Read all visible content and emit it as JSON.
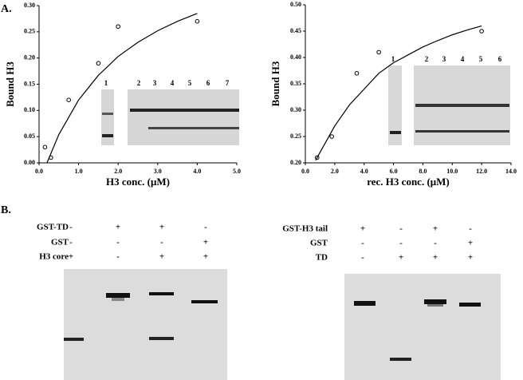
{
  "panel_a_label": "A.",
  "panel_b_label": "B.",
  "chart_data": [
    {
      "type": "scatter",
      "ylabel": "Bound H3",
      "xlabel": "H3 conc. (μM)",
      "xlim": [
        0,
        5
      ],
      "ylim": [
        0,
        0.3
      ],
      "xticks": [
        {
          "value": 0,
          "label": "0.0"
        },
        {
          "value": 1,
          "label": "1.0"
        },
        {
          "value": 2,
          "label": "2.0"
        },
        {
          "value": 3,
          "label": "3.0"
        },
        {
          "value": 4,
          "label": "4.0"
        },
        {
          "value": 5,
          "label": "5.0"
        }
      ],
      "yticks": [
        {
          "value": 0,
          "label": "0.00"
        },
        {
          "value": 0.05,
          "label": "0.05"
        },
        {
          "value": 0.1,
          "label": "0.10"
        },
        {
          "value": 0.15,
          "label": "0.15"
        },
        {
          "value": 0.2,
          "label": "0.20"
        },
        {
          "value": 0.25,
          "label": "0.25"
        },
        {
          "value": 0.3,
          "label": "0.30"
        }
      ],
      "series": [
        {
          "style": "markers",
          "color": "#000000",
          "x": [
            0.15,
            0.3,
            0.75,
            1.5,
            2.0,
            4.0
          ],
          "values": [
            0.03,
            0.01,
            0.12,
            0.19,
            0.26,
            0.27
          ]
        },
        {
          "style": "line",
          "color": "#000000",
          "x": [
            0.2,
            0.5,
            1,
            1.5,
            2,
            2.5,
            3,
            3.5,
            4
          ],
          "values": [
            0,
            0.054,
            0.12,
            0.167,
            0.203,
            0.23,
            0.252,
            0.27,
            0.285
          ]
        }
      ],
      "inset_lanes": [
        "1",
        "2",
        "3",
        "4",
        "5",
        "6",
        "7"
      ]
    },
    {
      "type": "scatter",
      "ylabel": "Bound H3",
      "xlabel": "rec. H3 conc. (μM)",
      "xlim": [
        0,
        14
      ],
      "ylim": [
        0.2,
        0.5
      ],
      "xticks": [
        {
          "value": 0,
          "label": "0.0"
        },
        {
          "value": 2,
          "label": "2.0"
        },
        {
          "value": 4,
          "label": "4.0"
        },
        {
          "value": 6,
          "label": "6.0"
        },
        {
          "value": 8,
          "label": "8.0"
        },
        {
          "value": 10,
          "label": "10.0"
        },
        {
          "value": 12,
          "label": "12.0"
        },
        {
          "value": 14,
          "label": "14.0"
        }
      ],
      "yticks": [
        {
          "value": 0.2,
          "label": "0.20"
        },
        {
          "value": 0.25,
          "label": "0.25"
        },
        {
          "value": 0.3,
          "label": "0.30"
        },
        {
          "value": 0.35,
          "label": "0.35"
        },
        {
          "value": 0.4,
          "label": "0.40"
        },
        {
          "value": 0.45,
          "label": "0.45"
        },
        {
          "value": 0.5,
          "label": "0.50"
        }
      ],
      "series": [
        {
          "style": "markers",
          "color": "#000000",
          "x": [
            0.8,
            1.8,
            3.5,
            5,
            12
          ],
          "values": [
            0.21,
            0.25,
            0.37,
            0.41,
            0.45
          ]
        },
        {
          "style": "line",
          "color": "#000000",
          "x": [
            0.7,
            1,
            2,
            3,
            4,
            5,
            6,
            7,
            8,
            9,
            10,
            11,
            12
          ],
          "values": [
            0.205,
            0.22,
            0.27,
            0.31,
            0.34,
            0.37,
            0.39,
            0.405,
            0.42,
            0.432,
            0.443,
            0.452,
            0.46
          ]
        }
      ],
      "inset_lanes": [
        "1",
        "2",
        "3",
        "4",
        "5",
        "6"
      ]
    }
  ],
  "panel_b": {
    "left": {
      "rows": [
        {
          "label": "GST-TD",
          "marks": [
            "-",
            "+",
            "+",
            "-"
          ]
        },
        {
          "label": "GST",
          "marks": [
            "-",
            "-",
            "-",
            "+"
          ]
        },
        {
          "label": "H3 core",
          "marks": [
            "+",
            "-",
            "+",
            "+"
          ]
        }
      ]
    },
    "right": {
      "rows": [
        {
          "label": "GST-H3 tail",
          "marks": [
            "+",
            "-",
            "+",
            "-"
          ]
        },
        {
          "label": "GST",
          "marks": [
            "-",
            "-",
            "-",
            "+"
          ]
        },
        {
          "label": "TD",
          "marks": [
            "-",
            "+",
            "+",
            "+"
          ]
        }
      ]
    }
  }
}
